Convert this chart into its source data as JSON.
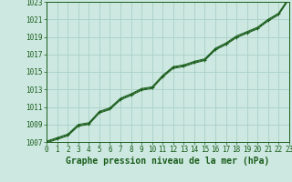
{
  "title": "Graphe pression niveau de la mer (hPa)",
  "background_color": "#cce8e0",
  "grid_color": "#aad0c8",
  "line_color": "#1a5c1a",
  "marker_color": "#1a5c1a",
  "x_values": [
    0,
    1,
    2,
    3,
    4,
    5,
    6,
    7,
    8,
    9,
    10,
    11,
    12,
    13,
    14,
    15,
    16,
    17,
    18,
    19,
    20,
    21,
    22,
    23
  ],
  "y_main": [
    1007.0,
    1007.4,
    1007.8,
    1008.9,
    1009.1,
    1010.4,
    1010.8,
    1011.9,
    1012.4,
    1013.0,
    1013.2,
    1014.5,
    1015.5,
    1015.7,
    1016.1,
    1016.4,
    1017.6,
    1018.2,
    1019.0,
    1019.5,
    1020.0,
    1020.9,
    1021.6,
    1023.4
  ],
  "y_upper": [
    1007.1,
    1007.5,
    1007.9,
    1009.0,
    1009.2,
    1010.5,
    1010.9,
    1012.0,
    1012.5,
    1013.1,
    1013.3,
    1014.6,
    1015.6,
    1015.8,
    1016.2,
    1016.5,
    1017.7,
    1018.3,
    1019.1,
    1019.6,
    1020.1,
    1021.0,
    1021.7,
    1023.5
  ],
  "y_lower": [
    1006.9,
    1007.3,
    1007.7,
    1008.8,
    1009.0,
    1010.3,
    1010.7,
    1011.8,
    1012.3,
    1012.9,
    1013.1,
    1014.4,
    1015.4,
    1015.6,
    1016.0,
    1016.3,
    1017.5,
    1018.1,
    1018.9,
    1019.4,
    1019.9,
    1020.8,
    1021.5,
    1023.3
  ],
  "ylim": [
    1007,
    1023
  ],
  "xlim": [
    0,
    23
  ],
  "yticks": [
    1007,
    1009,
    1011,
    1013,
    1015,
    1017,
    1019,
    1021,
    1023
  ],
  "xticks": [
    0,
    1,
    2,
    3,
    4,
    5,
    6,
    7,
    8,
    9,
    10,
    11,
    12,
    13,
    14,
    15,
    16,
    17,
    18,
    19,
    20,
    21,
    22,
    23
  ],
  "tick_fontsize": 5.5,
  "title_fontsize": 7.0
}
